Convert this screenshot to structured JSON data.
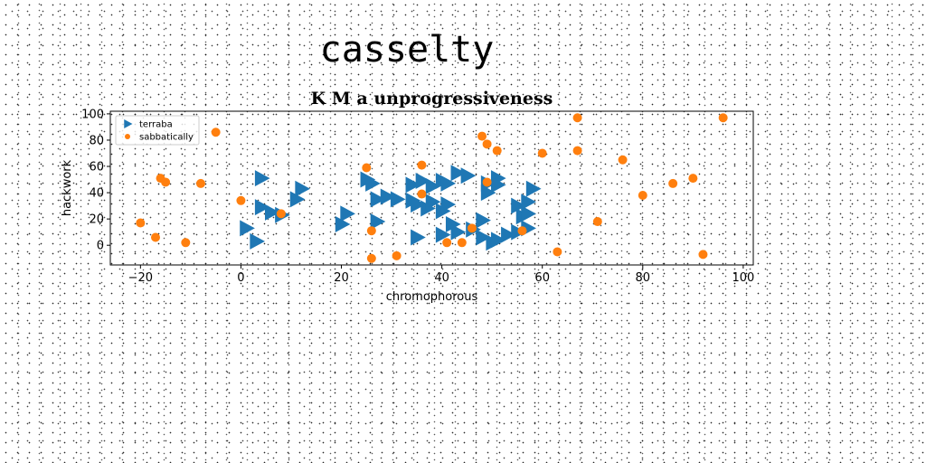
{
  "heading": "casselty",
  "chart_data": {
    "type": "scatter",
    "title": "K M a unprogressiveness",
    "xlabel": "chromophorous",
    "ylabel": "hackwork",
    "xlim": [
      -26,
      102
    ],
    "ylim": [
      -15,
      102
    ],
    "xticks": [
      -20,
      0,
      20,
      40,
      60,
      80,
      100
    ],
    "yticks": [
      0,
      20,
      40,
      60,
      80,
      100
    ],
    "xtick_labels": [
      "−20",
      "0",
      "20",
      "40",
      "60",
      "80",
      "100"
    ],
    "ytick_labels": [
      "0",
      "20",
      "40",
      "60",
      "80",
      "100"
    ],
    "grid": false,
    "legend_position": "top-left",
    "series": [
      {
        "name": "terraba",
        "marker": "triangle-right",
        "color": "#1f77b4",
        "points": [
          [
            1,
            13
          ],
          [
            3,
            3
          ],
          [
            4,
            29
          ],
          [
            4,
            51
          ],
          [
            6,
            25
          ],
          [
            8,
            23
          ],
          [
            11,
            35
          ],
          [
            12,
            43
          ],
          [
            20,
            16
          ],
          [
            21,
            24
          ],
          [
            25,
            50
          ],
          [
            26,
            47
          ],
          [
            27,
            35
          ],
          [
            27,
            18
          ],
          [
            29,
            37
          ],
          [
            31,
            35
          ],
          [
            34,
            34
          ],
          [
            34,
            46
          ],
          [
            35,
            6
          ],
          [
            35,
            31
          ],
          [
            36,
            49
          ],
          [
            37,
            28
          ],
          [
            38,
            33
          ],
          [
            38,
            45
          ],
          [
            40,
            8
          ],
          [
            40,
            26
          ],
          [
            40,
            49
          ],
          [
            41,
            31
          ],
          [
            41,
            47
          ],
          [
            42,
            16
          ],
          [
            43,
            10
          ],
          [
            43,
            55
          ],
          [
            45,
            53
          ],
          [
            46,
            12
          ],
          [
            48,
            6
          ],
          [
            48,
            19
          ],
          [
            49,
            40
          ],
          [
            49,
            47
          ],
          [
            50,
            2
          ],
          [
            51,
            51
          ],
          [
            51,
            46
          ],
          [
            51,
            4
          ],
          [
            53,
            8
          ],
          [
            55,
            30
          ],
          [
            55,
            10
          ],
          [
            56,
            22
          ],
          [
            57,
            33
          ],
          [
            57,
            24
          ],
          [
            57,
            13
          ],
          [
            58,
            43
          ]
        ]
      },
      {
        "name": "sabbatically",
        "marker": "circle",
        "color": "#ff7f0e",
        "points": [
          [
            -20,
            17
          ],
          [
            -17,
            6
          ],
          [
            -16,
            51
          ],
          [
            -15,
            48
          ],
          [
            -11,
            2
          ],
          [
            -8,
            47
          ],
          [
            -5,
            86
          ],
          [
            0,
            34
          ],
          [
            8,
            24
          ],
          [
            25,
            59
          ],
          [
            26,
            11
          ],
          [
            26,
            -10
          ],
          [
            31,
            -8
          ],
          [
            36,
            61
          ],
          [
            36,
            39
          ],
          [
            41,
            2
          ],
          [
            44,
            2
          ],
          [
            46,
            13
          ],
          [
            48,
            83
          ],
          [
            49,
            77
          ],
          [
            49,
            48
          ],
          [
            51,
            72
          ],
          [
            56,
            11
          ],
          [
            60,
            70
          ],
          [
            63,
            -5
          ],
          [
            67,
            97
          ],
          [
            67,
            72
          ],
          [
            71,
            18
          ],
          [
            76,
            65
          ],
          [
            80,
            38
          ],
          [
            86,
            47
          ],
          [
            90,
            51
          ],
          [
            92,
            -7
          ],
          [
            96,
            97
          ]
        ]
      }
    ]
  }
}
